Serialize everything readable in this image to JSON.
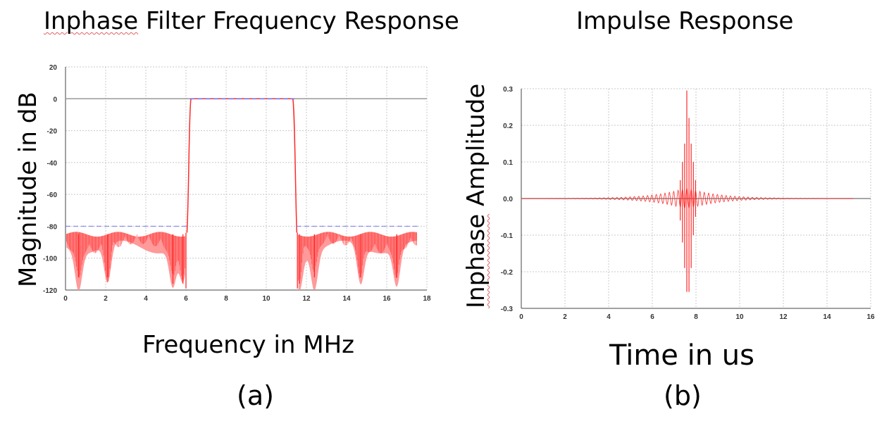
{
  "chart_data": [
    {
      "type": "line",
      "title": "Filter Frequency Response",
      "title_prefix": "Inphase",
      "xlabel": "Frequency in MHz",
      "ylabel": "Magnitude in dB",
      "panel_label": "(a)",
      "xlim": [
        0,
        18
      ],
      "ylim": [
        -120,
        20
      ],
      "xticks": [
        0,
        2,
        4,
        6,
        8,
        10,
        12,
        14,
        16,
        18
      ],
      "yticks": [
        20,
        0,
        -20,
        -40,
        -60,
        -80,
        -100,
        -120
      ],
      "grid": true,
      "passband": {
        "start": 6.2,
        "end": 11.4,
        "level": 0
      },
      "stopband_level": -80,
      "stopband_floor": -85,
      "nulls": [
        0.65,
        2.1,
        5.35,
        5.85,
        11.65,
        12.4,
        14.7,
        16.5
      ],
      "colors": {
        "response": "#ff2a2a",
        "response_fill": "#ff9a9a",
        "spec": "#6e6ee8",
        "zero_line": "#9a9a9a"
      }
    },
    {
      "type": "line",
      "title": "Impulse Response",
      "xlabel": "Time in us",
      "ylabel": "Amplitude",
      "ylabel_prefix": "Inphase",
      "panel_label": "(b)",
      "xlim": [
        0,
        16
      ],
      "ylim": [
        -0.3,
        0.3
      ],
      "xticks": [
        0,
        2,
        4,
        6,
        8,
        10,
        12,
        14,
        16
      ],
      "yticks": [
        "0.3",
        "0.2",
        "0.1",
        "0.0",
        "-0.1",
        "-0.2",
        "-0.3"
      ],
      "grid": true,
      "signal_span": [
        0,
        15.2
      ],
      "peak": {
        "x": 7.58,
        "y": 0.295
      },
      "min_value": -0.255,
      "colors": {
        "response": "#ff2a2a",
        "zero_line": "#8a8a8a"
      }
    }
  ]
}
